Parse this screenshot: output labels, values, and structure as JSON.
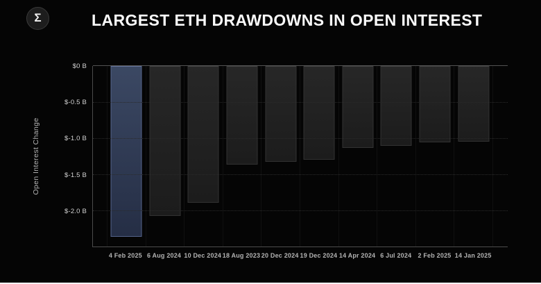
{
  "header": {
    "title": "LARGEST ETH DRAWDOWNS IN OPEN INTEREST",
    "logo_glyph": "Σ"
  },
  "chart_data": {
    "type": "bar",
    "title": "LARGEST ETH DRAWDOWNS IN OPEN INTEREST",
    "categories": [
      "4 Feb 2025",
      "6 Aug 2024",
      "10 Dec 2024",
      "18 Aug 2023",
      "20 Dec 2024",
      "19 Dec 2024",
      "14 Apr 2024",
      "6 Jul 2024",
      "2 Feb 2025",
      "14 Jan 2025"
    ],
    "values": [
      -2.37,
      -2.08,
      -1.89,
      -1.37,
      -1.33,
      -1.3,
      -1.13,
      -1.11,
      -1.06,
      -1.05
    ],
    "unit": "USD billions",
    "xlabel": "",
    "ylabel": "Open Interest Change",
    "ylim": [
      -2.5,
      0
    ],
    "yticks": [
      {
        "value": 0,
        "label": "$0 B"
      },
      {
        "value": -0.5,
        "label": "$-0.5 B"
      },
      {
        "value": -1.0,
        "label": "$-1.0 B"
      },
      {
        "value": -1.5,
        "label": "$-1.5 B"
      },
      {
        "value": -2.0,
        "label": "$-2.0 B"
      }
    ],
    "grid": "horizontal-dotted",
    "legend": "none",
    "highlight_index": 0,
    "colors": {
      "background": "#050505",
      "highlight_bar_top": "#3b4863",
      "highlight_bar_bottom": "#252e45",
      "highlight_border": "#55648b",
      "bar_top": "#272727",
      "bar_bottom": "#1c1c1c",
      "bar_border": "#323232",
      "axis_line": "#4c4c4c",
      "grid_line": "#2a2a2a",
      "title_text": "#fafafa",
      "ytick_text": "#d2d2d2",
      "xlabel_text": "#b3b3b3"
    }
  }
}
